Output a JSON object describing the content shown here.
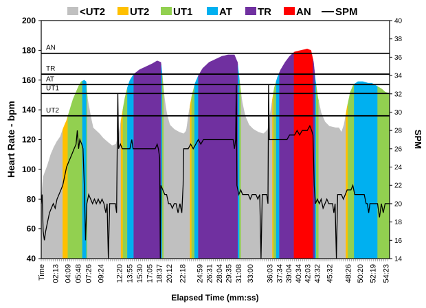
{
  "chart_data": {
    "type": "area",
    "title": "",
    "xlabel": "Elapsed Time (mm:ss)",
    "ylabel": "Heart Rate - bpm",
    "y2label": "SPM",
    "ylim": [
      40,
      200
    ],
    "y2lim": [
      14,
      40
    ],
    "yticks": [
      40,
      60,
      80,
      100,
      120,
      140,
      160,
      180,
      200
    ],
    "y2ticks": [
      14,
      16,
      18,
      20,
      22,
      24,
      26,
      28,
      30,
      32,
      34,
      36,
      38,
      40
    ],
    "xlim": [
      0,
      55
    ],
    "xtick_labels": [
      "Time",
      "02:13",
      "04:09",
      "05:48",
      "07:26",
      "09:24",
      "12:20",
      "13:55",
      "15:30",
      "17:05",
      "18:37",
      "20:12",
      "22:18",
      "24:59",
      "26:31",
      "28:04",
      "29:35",
      "31:08",
      "33:00",
      "36:03",
      "37:34",
      "39:04",
      "40:34",
      "42:03",
      "43:32",
      "45:32",
      "48:26",
      "50:20",
      "52:19",
      "54:23"
    ],
    "xtick_minutes": [
      0,
      2.22,
      4.15,
      5.8,
      7.43,
      9.4,
      12.33,
      13.92,
      15.5,
      17.08,
      18.62,
      20.2,
      22.3,
      24.98,
      26.52,
      28.07,
      29.58,
      31.13,
      33.0,
      36.05,
      37.57,
      39.07,
      40.57,
      42.05,
      43.53,
      45.53,
      48.43,
      50.33,
      52.32,
      54.38
    ],
    "legend_position": "top",
    "legend": [
      {
        "label": "<UT2",
        "color": "#c0c0c0",
        "kind": "box"
      },
      {
        "label": "UT2",
        "color": "#ffc000",
        "kind": "box"
      },
      {
        "label": "UT1",
        "color": "#92d050",
        "kind": "box"
      },
      {
        "label": "AT",
        "color": "#00b0f0",
        "kind": "box"
      },
      {
        "label": "TR",
        "color": "#7030a0",
        "kind": "box"
      },
      {
        "label": "AN",
        "color": "#ff0000",
        "kind": "box"
      },
      {
        "label": "SPM",
        "color": "#000000",
        "kind": "line"
      }
    ],
    "zones": [
      {
        "label": "AN",
        "hr": 178
      },
      {
        "label": "TR",
        "hr": 164
      },
      {
        "label": "AT",
        "hr": 157
      },
      {
        "label": "UT1",
        "hr": 151
      },
      {
        "label": "UT2",
        "hr": 136
      }
    ],
    "hr_series": [
      [
        0,
        80
      ],
      [
        0.3,
        95
      ],
      [
        1.0,
        103
      ],
      [
        1.5,
        110
      ],
      [
        2.0,
        115
      ],
      [
        2.5,
        119
      ],
      [
        3.0,
        122
      ],
      [
        3.5,
        128
      ],
      [
        4.0,
        133
      ],
      [
        4.5,
        140
      ],
      [
        5.0,
        147
      ],
      [
        5.5,
        152
      ],
      [
        5.9,
        156
      ],
      [
        6.3,
        159
      ],
      [
        6.8,
        160
      ],
      [
        7.1,
        159
      ],
      [
        7.3,
        148
      ],
      [
        7.8,
        136
      ],
      [
        8.2,
        128
      ],
      [
        8.7,
        126
      ],
      [
        9.2,
        124
      ],
      [
        9.8,
        121
      ],
      [
        10.6,
        118
      ],
      [
        11.2,
        116
      ],
      [
        11.8,
        117
      ],
      [
        12.2,
        123
      ],
      [
        12.8,
        138
      ],
      [
        13.2,
        148
      ],
      [
        13.6,
        155
      ],
      [
        14.0,
        160
      ],
      [
        14.6,
        164
      ],
      [
        15.5,
        167
      ],
      [
        16.5,
        169
      ],
      [
        17.5,
        171
      ],
      [
        18.3,
        173
      ],
      [
        18.9,
        172
      ],
      [
        19.1,
        164
      ],
      [
        19.4,
        150
      ],
      [
        19.8,
        138
      ],
      [
        20.3,
        130
      ],
      [
        21.0,
        127
      ],
      [
        21.8,
        125
      ],
      [
        22.5,
        124
      ],
      [
        22.9,
        126
      ],
      [
        23.3,
        138
      ],
      [
        23.8,
        150
      ],
      [
        24.3,
        158
      ],
      [
        24.8,
        163
      ],
      [
        25.5,
        168
      ],
      [
        26.5,
        172
      ],
      [
        27.5,
        174
      ],
      [
        28.5,
        176
      ],
      [
        29.5,
        177
      ],
      [
        30.5,
        177
      ],
      [
        31.0,
        172
      ],
      [
        31.3,
        160
      ],
      [
        31.7,
        146
      ],
      [
        32.2,
        136
      ],
      [
        32.8,
        130
      ],
      [
        33.5,
        127
      ],
      [
        34.3,
        125
      ],
      [
        35.1,
        124
      ],
      [
        35.8,
        127
      ],
      [
        36.3,
        142
      ],
      [
        36.8,
        155
      ],
      [
        37.3,
        162
      ],
      [
        37.8,
        167
      ],
      [
        38.5,
        172
      ],
      [
        39.2,
        176
      ],
      [
        40.0,
        179
      ],
      [
        41.0,
        180
      ],
      [
        42.0,
        181
      ],
      [
        42.6,
        180
      ],
      [
        43.0,
        172
      ],
      [
        43.3,
        160
      ],
      [
        43.7,
        148
      ],
      [
        44.2,
        138
      ],
      [
        44.8,
        132
      ],
      [
        45.5,
        129
      ],
      [
        46.5,
        128
      ],
      [
        47.0,
        128
      ],
      [
        47.4,
        125
      ],
      [
        47.8,
        130
      ],
      [
        48.3,
        142
      ],
      [
        48.8,
        152
      ],
      [
        49.3,
        157
      ],
      [
        50.0,
        159
      ],
      [
        50.8,
        159
      ],
      [
        51.6,
        158
      ],
      [
        52.2,
        158
      ],
      [
        52.6,
        157
      ],
      [
        53.0,
        156
      ],
      [
        53.8,
        154
      ],
      [
        54.3,
        152
      ],
      [
        55.0,
        151
      ]
    ],
    "zone_bands": [
      {
        "zone": "<UT2",
        "from": 0,
        "to": 3.4
      },
      {
        "zone": "UT2",
        "from": 3.4,
        "to": 4.2
      },
      {
        "zone": "UT1",
        "from": 4.2,
        "to": 6.5
      },
      {
        "zone": "AT",
        "from": 6.5,
        "to": 7.15
      },
      {
        "zone": "UT1",
        "from": 7.15,
        "to": 7.3
      },
      {
        "zone": "<UT2",
        "from": 7.3,
        "to": 12.6
      },
      {
        "zone": "UT2",
        "from": 12.6,
        "to": 12.9
      },
      {
        "zone": "UT1",
        "from": 12.9,
        "to": 13.6
      },
      {
        "zone": "AT",
        "from": 13.6,
        "to": 14.6
      },
      {
        "zone": "TR",
        "from": 14.6,
        "to": 18.95
      },
      {
        "zone": "AT",
        "from": 18.95,
        "to": 19.1
      },
      {
        "zone": "UT1",
        "from": 19.1,
        "to": 19.35
      },
      {
        "zone": "<UT2",
        "from": 19.35,
        "to": 23.5
      },
      {
        "zone": "UT2",
        "from": 23.5,
        "to": 23.75
      },
      {
        "zone": "UT1",
        "from": 23.75,
        "to": 24.2
      },
      {
        "zone": "AT",
        "from": 24.2,
        "to": 24.8
      },
      {
        "zone": "TR",
        "from": 24.8,
        "to": 31.05
      },
      {
        "zone": "AT",
        "from": 31.05,
        "to": 31.3
      },
      {
        "zone": "UT1",
        "from": 31.3,
        "to": 31.55
      },
      {
        "zone": "<UT2",
        "from": 31.55,
        "to": 36.5
      },
      {
        "zone": "UT2",
        "from": 36.5,
        "to": 36.7
      },
      {
        "zone": "UT1",
        "from": 36.7,
        "to": 37.1
      },
      {
        "zone": "AT",
        "from": 37.1,
        "to": 37.6
      },
      {
        "zone": "TR",
        "from": 37.6,
        "to": 39.9
      },
      {
        "zone": "AN",
        "from": 39.9,
        "to": 42.9
      },
      {
        "zone": "TR",
        "from": 42.9,
        "to": 43.2
      },
      {
        "zone": "AT",
        "from": 43.2,
        "to": 43.4
      },
      {
        "zone": "UT1",
        "from": 43.4,
        "to": 43.8
      },
      {
        "zone": "<UT2",
        "from": 43.8,
        "to": 48.1
      },
      {
        "zone": "UT2",
        "from": 48.1,
        "to": 48.4
      },
      {
        "zone": "UT1",
        "from": 48.4,
        "to": 49.4
      },
      {
        "zone": "AT",
        "from": 49.4,
        "to": 53.1
      },
      {
        "zone": "UT1",
        "from": 53.1,
        "to": 55
      }
    ],
    "spm_series": [
      [
        0,
        20
      ],
      [
        0.15,
        21
      ],
      [
        0.3,
        17
      ],
      [
        0.5,
        16
      ],
      [
        0.7,
        17
      ],
      [
        1.0,
        18
      ],
      [
        1.3,
        19
      ],
      [
        1.6,
        19.5
      ],
      [
        1.9,
        20
      ],
      [
        2.2,
        19.5
      ],
      [
        2.5,
        20.5
      ],
      [
        2.8,
        21
      ],
      [
        3.1,
        21.5
      ],
      [
        3.4,
        22
      ],
      [
        3.7,
        23
      ],
      [
        4.0,
        24
      ],
      [
        4.3,
        24.5
      ],
      [
        4.6,
        25
      ],
      [
        4.9,
        25.5
      ],
      [
        5.2,
        26
      ],
      [
        5.5,
        26.5
      ],
      [
        5.7,
        28
      ],
      [
        5.9,
        26
      ],
      [
        6.1,
        27
      ],
      [
        6.4,
        26.5
      ],
      [
        6.6,
        26
      ],
      [
        6.8,
        22
      ],
      [
        7.0,
        16
      ],
      [
        7.2,
        20
      ],
      [
        7.5,
        21
      ],
      [
        7.8,
        20.5
      ],
      [
        8.1,
        20
      ],
      [
        8.4,
        20.5
      ],
      [
        8.7,
        20
      ],
      [
        9.0,
        20.5
      ],
      [
        9.3,
        20
      ],
      [
        9.6,
        20.5
      ],
      [
        9.9,
        20
      ],
      [
        10.2,
        19
      ],
      [
        10.4,
        20
      ],
      [
        10.6,
        14
      ],
      [
        10.8,
        20
      ],
      [
        11.1,
        20
      ],
      [
        11.4,
        20
      ],
      [
        11.7,
        20
      ],
      [
        11.9,
        19
      ],
      [
        12.0,
        26
      ],
      [
        12.1,
        32
      ],
      [
        12.2,
        26
      ],
      [
        12.5,
        26.5
      ],
      [
        12.8,
        26
      ],
      [
        13.2,
        26
      ],
      [
        13.6,
        26
      ],
      [
        14.0,
        26
      ],
      [
        14.3,
        27
      ],
      [
        14.5,
        26
      ],
      [
        14.8,
        26
      ],
      [
        15.2,
        26
      ],
      [
        15.6,
        26
      ],
      [
        16.0,
        26
      ],
      [
        16.4,
        26
      ],
      [
        16.8,
        26
      ],
      [
        17.2,
        26
      ],
      [
        17.6,
        26
      ],
      [
        18.0,
        26
      ],
      [
        18.3,
        26.5
      ],
      [
        18.5,
        26
      ],
      [
        18.7,
        25
      ],
      [
        18.8,
        14
      ],
      [
        18.9,
        22
      ],
      [
        19.2,
        21.5
      ],
      [
        19.5,
        21
      ],
      [
        19.8,
        21
      ],
      [
        20.1,
        20
      ],
      [
        20.4,
        20
      ],
      [
        20.7,
        19.5
      ],
      [
        21.0,
        20
      ],
      [
        21.3,
        20
      ],
      [
        21.6,
        19
      ],
      [
        21.9,
        20
      ],
      [
        22.2,
        19
      ],
      [
        22.4,
        22
      ],
      [
        22.5,
        26
      ],
      [
        22.8,
        26
      ],
      [
        23.2,
        26
      ],
      [
        23.6,
        26.5
      ],
      [
        24.0,
        26
      ],
      [
        24.4,
        26.5
      ],
      [
        24.8,
        27
      ],
      [
        25.2,
        26.5
      ],
      [
        25.6,
        27
      ],
      [
        26.0,
        27
      ],
      [
        26.4,
        27
      ],
      [
        26.8,
        27
      ],
      [
        27.2,
        27
      ],
      [
        27.6,
        27
      ],
      [
        28.0,
        27
      ],
      [
        28.4,
        27
      ],
      [
        28.8,
        27
      ],
      [
        29.2,
        27
      ],
      [
        29.6,
        27
      ],
      [
        30.0,
        27
      ],
      [
        30.3,
        27
      ],
      [
        30.5,
        26
      ],
      [
        30.7,
        27
      ],
      [
        30.8,
        33
      ],
      [
        30.9,
        22
      ],
      [
        31.2,
        21
      ],
      [
        31.5,
        21.5
      ],
      [
        31.8,
        21
      ],
      [
        32.1,
        21
      ],
      [
        32.4,
        21
      ],
      [
        32.7,
        21
      ],
      [
        33.0,
        20.5
      ],
      [
        33.3,
        21
      ],
      [
        33.6,
        21
      ],
      [
        33.9,
        21
      ],
      [
        34.2,
        20.5
      ],
      [
        34.5,
        21
      ],
      [
        34.7,
        14
      ],
      [
        34.9,
        21
      ],
      [
        35.3,
        21
      ],
      [
        35.6,
        21
      ],
      [
        35.8,
        20
      ],
      [
        35.9,
        33
      ],
      [
        36.0,
        27
      ],
      [
        36.4,
        27
      ],
      [
        36.8,
        27
      ],
      [
        37.2,
        27
      ],
      [
        37.6,
        27
      ],
      [
        38.0,
        27
      ],
      [
        38.4,
        27
      ],
      [
        38.8,
        27
      ],
      [
        39.2,
        27.5
      ],
      [
        39.6,
        27.5
      ],
      [
        40.0,
        27.5
      ],
      [
        40.4,
        28
      ],
      [
        40.8,
        27.5
      ],
      [
        41.2,
        28
      ],
      [
        41.6,
        28
      ],
      [
        42.0,
        28
      ],
      [
        42.4,
        28.5
      ],
      [
        42.7,
        28
      ],
      [
        42.9,
        27.5
      ],
      [
        43.1,
        22
      ],
      [
        43.3,
        20
      ],
      [
        43.6,
        20.5
      ],
      [
        43.9,
        20
      ],
      [
        44.2,
        20.5
      ],
      [
        44.5,
        19.5
      ],
      [
        44.8,
        20
      ],
      [
        45.1,
        20.5
      ],
      [
        45.4,
        20
      ],
      [
        45.7,
        20
      ],
      [
        46.0,
        20
      ],
      [
        46.2,
        19
      ],
      [
        46.4,
        20
      ],
      [
        46.6,
        14
      ],
      [
        46.8,
        21
      ],
      [
        47.1,
        21
      ],
      [
        47.4,
        21
      ],
      [
        47.7,
        20.5
      ],
      [
        48.0,
        21
      ],
      [
        48.3,
        21.5
      ],
      [
        48.6,
        21.5
      ],
      [
        48.9,
        21.5
      ],
      [
        49.2,
        22
      ],
      [
        49.5,
        21
      ],
      [
        49.8,
        21
      ],
      [
        50.1,
        21
      ],
      [
        50.4,
        21
      ],
      [
        50.7,
        21
      ],
      [
        51.0,
        21
      ],
      [
        51.3,
        20
      ],
      [
        51.5,
        20
      ],
      [
        51.7,
        19
      ],
      [
        51.9,
        20
      ],
      [
        52.2,
        20
      ],
      [
        52.5,
        20
      ],
      [
        52.8,
        20
      ],
      [
        53.1,
        20
      ],
      [
        53.4,
        18.5
      ],
      [
        53.7,
        20
      ],
      [
        54.0,
        19
      ],
      [
        54.3,
        20
      ],
      [
        54.6,
        20
      ],
      [
        55.0,
        20
      ]
    ]
  }
}
